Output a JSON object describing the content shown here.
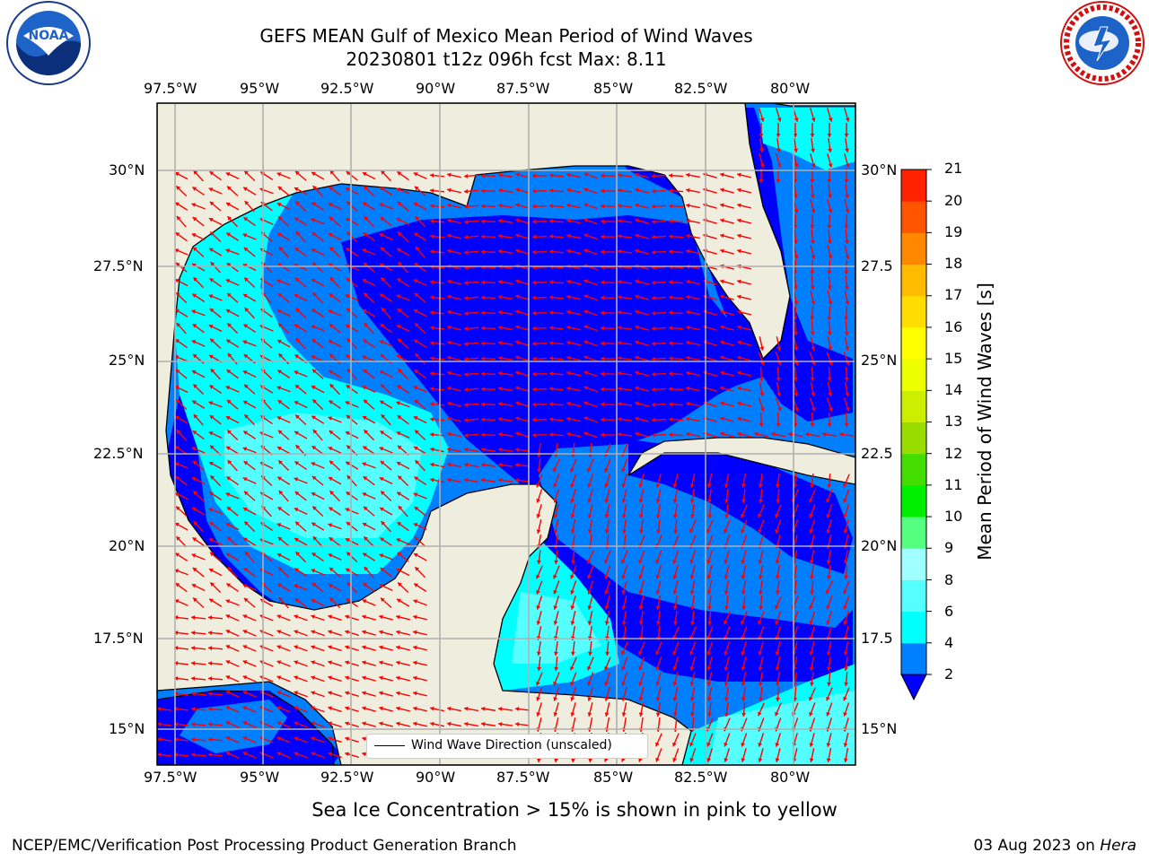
{
  "header": {
    "title_line1": "GEFS MEAN Gulf of Mexico Mean Period of Wind Waves",
    "title_line2": "20230801 t12z 096h fcst   Max: 8.11"
  },
  "map": {
    "lon_ticks": [
      "97.5°W",
      "95°W",
      "92.5°W",
      "90°W",
      "87.5°W",
      "85°W",
      "82.5°W",
      "80°W"
    ],
    "lat_ticks_left": [
      "30°N",
      "27.5°N",
      "25°N",
      "22.5°N",
      "20°N",
      "17.5°N",
      "15°N"
    ],
    "lat_ticks_right": [
      "30°N",
      "27.5",
      "25°N",
      "22.5",
      "20°N",
      "17.5",
      "15°N"
    ],
    "legend_label": "Wind Wave Direction (unscaled)",
    "colors": {
      "land": "#efedde",
      "ocean_2_4": "#0080ff",
      "ocean_lt2": "#0000ff",
      "ocean_4_6": "#00ffff",
      "ocean_6_8": "#55ffff",
      "arrow": "#ff0000",
      "grid": "#b0b0b0"
    }
  },
  "colorbar": {
    "title": "Mean Period of Wind Waves [s]",
    "ticks": [
      "2",
      "4",
      "6",
      "8",
      "9",
      "10",
      "11",
      "12",
      "13",
      "14",
      "15",
      "16",
      "17",
      "18",
      "19",
      "20",
      "21"
    ],
    "colors": [
      "#0080ff",
      "#00ffff",
      "#55ffff",
      "#a0ffff",
      "#55ff80",
      "#00ee00",
      "#44dd00",
      "#99dd00",
      "#ccee00",
      "#eeff00",
      "#ffff00",
      "#ffdd00",
      "#ffbb00",
      "#ff8800",
      "#ff5500",
      "#ff2200"
    ],
    "under_color": "#0000ff"
  },
  "footer": {
    "ice_note": "Sea Ice Concentration > 15% is shown in pink to yellow",
    "credit_left": "NCEP/EMC/Verification Post Processing Product Generation Branch",
    "credit_right_date": "03 Aug 2023 on",
    "credit_right_machine": "Hera"
  }
}
